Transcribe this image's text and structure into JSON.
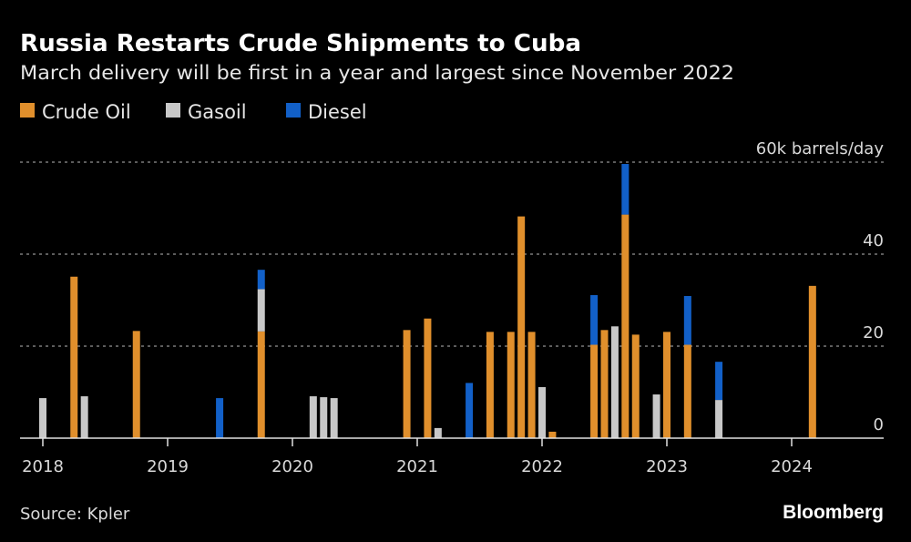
{
  "header": {
    "title": "Russia Restarts Crude Shipments to Cuba",
    "subtitle": "March delivery will be first in a year and largest since November 2022"
  },
  "footer": {
    "source": "Source: Kpler",
    "logo": "Bloomberg"
  },
  "colors": {
    "Crude Oil": "#e08f2c",
    "Gasoil": "#c8c8c8",
    "Diesel": "#1260c8",
    "background": "#000000"
  },
  "chart_data": {
    "type": "bar",
    "stacked": true,
    "title": "Russia Restarts Crude Shipments to Cuba",
    "subtitle": "March delivery will be first in a year and largest since November 2022",
    "ylabel": "60k barrels/day",
    "ylim": [
      0,
      60
    ],
    "yticks": [
      "0",
      "20",
      "40",
      "60k barrels/day"
    ],
    "ytick_values": [
      0,
      20,
      40,
      60
    ],
    "xticks": [
      "2018",
      "2019",
      "2020",
      "2021",
      "2022",
      "2023",
      "2024"
    ],
    "x_unit": "month",
    "xlim": [
      "2017-11",
      "2024-09"
    ],
    "grid": true,
    "legend": "top-left",
    "series_names": [
      "Crude Oil",
      "Gasoil",
      "Diesel"
    ],
    "data": [
      {
        "month": "2018-01",
        "Crude Oil": 0,
        "Gasoil": 8.7,
        "Diesel": 0
      },
      {
        "month": "2018-04",
        "Crude Oil": 35.1,
        "Gasoil": 0,
        "Diesel": 0
      },
      {
        "month": "2018-05",
        "Crude Oil": 0,
        "Gasoil": 9.1,
        "Diesel": 0
      },
      {
        "month": "2018-10",
        "Crude Oil": 23.3,
        "Gasoil": 0,
        "Diesel": 0
      },
      {
        "month": "2019-06",
        "Crude Oil": 0,
        "Gasoil": 0,
        "Diesel": 8.7
      },
      {
        "month": "2019-10",
        "Crude Oil": 23.2,
        "Gasoil": 9.2,
        "Diesel": 4.2
      },
      {
        "month": "2020-03",
        "Crude Oil": 0,
        "Gasoil": 9.1,
        "Diesel": 0
      },
      {
        "month": "2020-04",
        "Crude Oil": 0,
        "Gasoil": 8.9,
        "Diesel": 0
      },
      {
        "month": "2020-05",
        "Crude Oil": 0,
        "Gasoil": 8.7,
        "Diesel": 0
      },
      {
        "month": "2020-12",
        "Crude Oil": 23.5,
        "Gasoil": 0,
        "Diesel": 0
      },
      {
        "month": "2021-02",
        "Crude Oil": 26.0,
        "Gasoil": 0,
        "Diesel": 0
      },
      {
        "month": "2021-03",
        "Crude Oil": 0,
        "Gasoil": 2.2,
        "Diesel": 0
      },
      {
        "month": "2021-06",
        "Crude Oil": 0,
        "Gasoil": 0,
        "Diesel": 12.0
      },
      {
        "month": "2021-08",
        "Crude Oil": 23.1,
        "Gasoil": 0,
        "Diesel": 0
      },
      {
        "month": "2021-10",
        "Crude Oil": 23.1,
        "Gasoil": 0,
        "Diesel": 0
      },
      {
        "month": "2021-11",
        "Crude Oil": 48.2,
        "Gasoil": 0,
        "Diesel": 0
      },
      {
        "month": "2021-12",
        "Crude Oil": 23.1,
        "Gasoil": 0,
        "Diesel": 0
      },
      {
        "month": "2022-01",
        "Crude Oil": 0,
        "Gasoil": 11.1,
        "Diesel": 0
      },
      {
        "month": "2022-02",
        "Crude Oil": 1.4,
        "Gasoil": 0,
        "Diesel": 0
      },
      {
        "month": "2022-06",
        "Crude Oil": 20.3,
        "Gasoil": 0,
        "Diesel": 10.8
      },
      {
        "month": "2022-07",
        "Crude Oil": 23.5,
        "Gasoil": 0,
        "Diesel": 0
      },
      {
        "month": "2022-08",
        "Crude Oil": 0,
        "Gasoil": 24.3,
        "Diesel": 0
      },
      {
        "month": "2022-09",
        "Crude Oil": 48.6,
        "Gasoil": 0,
        "Diesel": 11.0
      },
      {
        "month": "2022-10",
        "Crude Oil": 22.5,
        "Gasoil": 0,
        "Diesel": 0
      },
      {
        "month": "2022-12",
        "Crude Oil": 0,
        "Gasoil": 9.5,
        "Diesel": 0
      },
      {
        "month": "2023-01",
        "Crude Oil": 23.1,
        "Gasoil": 0,
        "Diesel": 0
      },
      {
        "month": "2023-03",
        "Crude Oil": 20.3,
        "Gasoil": 0,
        "Diesel": 10.6
      },
      {
        "month": "2023-06",
        "Crude Oil": 0,
        "Gasoil": 8.3,
        "Diesel": 8.3
      },
      {
        "month": "2024-03",
        "Crude Oil": 33.1,
        "Gasoil": 0,
        "Diesel": 0
      }
    ]
  }
}
